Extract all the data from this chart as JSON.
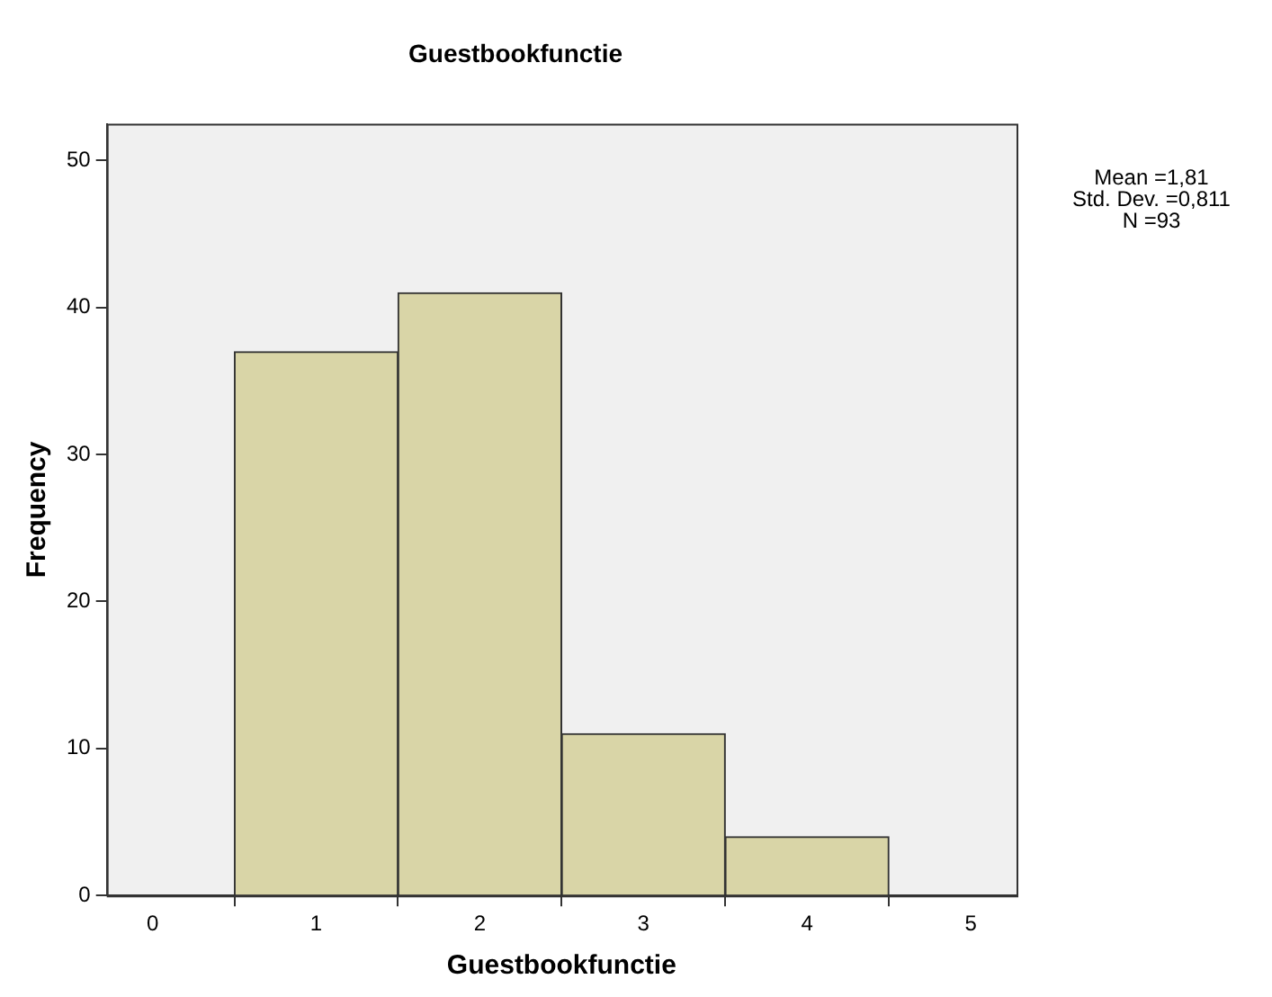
{
  "chart_data": {
    "type": "histogram",
    "title": "Guestbookfunctie",
    "xlabel": "Guestbookfunctie",
    "ylabel": "Frequency",
    "bins": [
      0.5,
      1.5,
      2.5,
      3.5,
      4.5
    ],
    "values": [
      37,
      41,
      11,
      4
    ],
    "color": "#d9d5a7",
    "xlim": [
      -0.28,
      5.28
    ],
    "xticks": [
      0,
      1,
      2,
      3,
      4,
      5
    ],
    "ylim": [
      0,
      52.5
    ],
    "yticks": [
      0,
      10,
      20,
      30,
      40,
      50
    ],
    "grid": false,
    "legend": false,
    "annotations": [
      "Mean =1,81",
      "Std. Dev. =0,811",
      "N =93"
    ]
  }
}
